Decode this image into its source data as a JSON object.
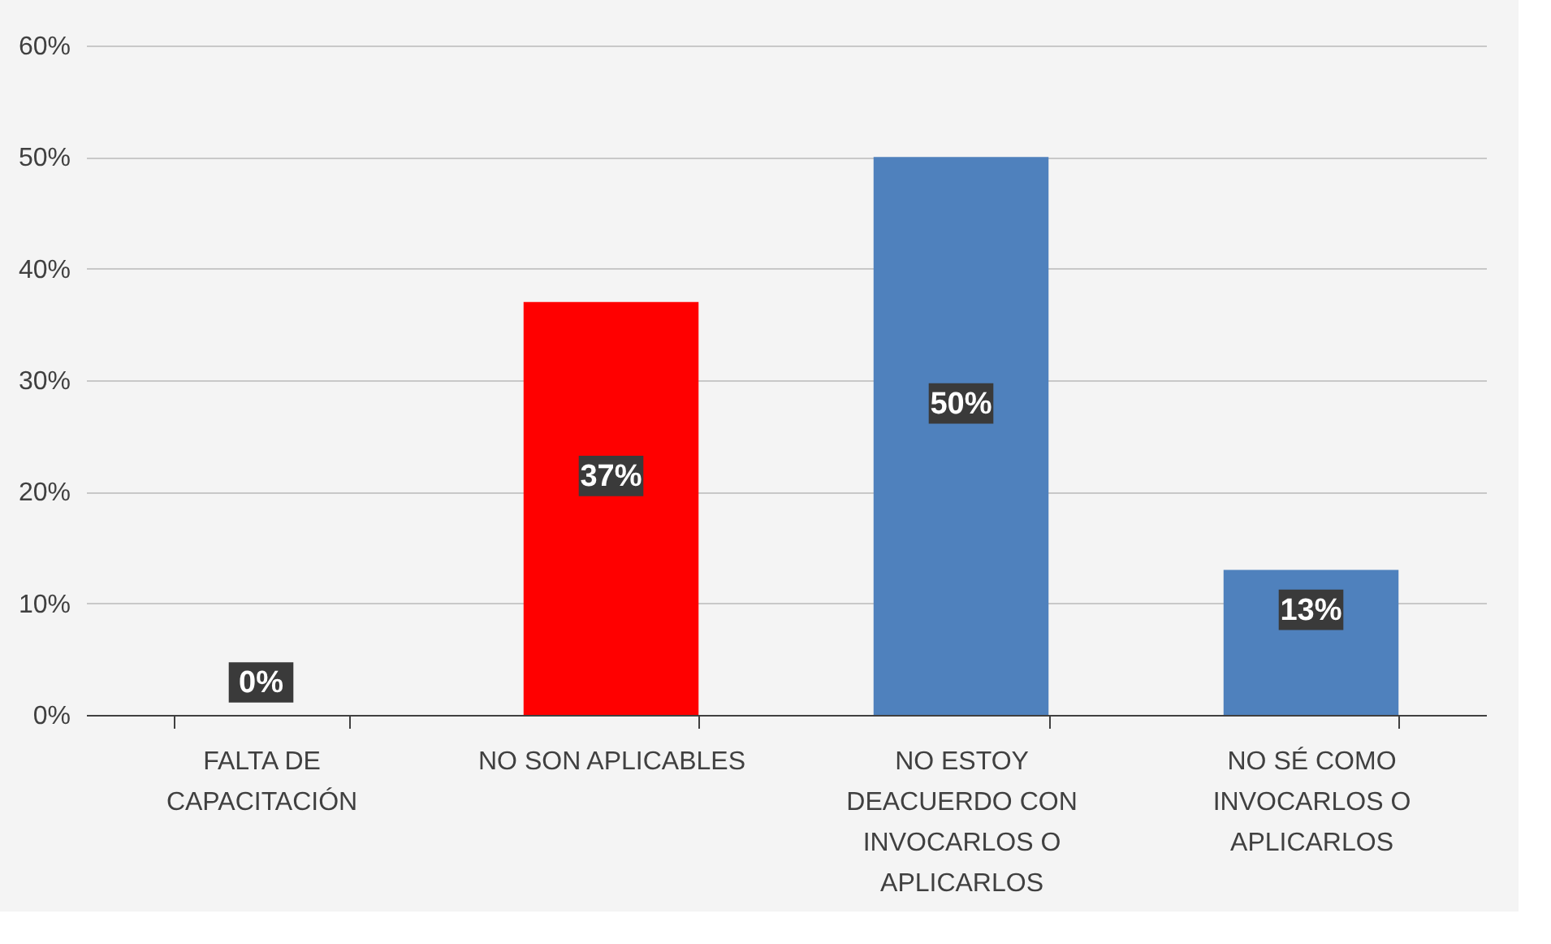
{
  "chart_data": {
    "type": "bar",
    "categories": [
      "FALTA DE CAPACITACIÓN",
      "NO SON APLICABLES",
      "NO ESTOY DEACUERDO CON INVOCARLOS O APLICARLOS",
      "NO SÉ COMO INVOCARLOS O APLICARLOS"
    ],
    "values": [
      0,
      37,
      50,
      13
    ],
    "colors": [
      "#4f81bd",
      "#ff0000",
      "#4f81bd",
      "#4f81bd"
    ],
    "value_labels": [
      "0%",
      "37%",
      "50%",
      "13%"
    ],
    "ylim": [
      0,
      60
    ],
    "yticks": [
      {
        "value": 0,
        "label": "0%"
      },
      {
        "value": 10,
        "label": "10%"
      },
      {
        "value": 20,
        "label": "20%"
      },
      {
        "value": 30,
        "label": "30%"
      },
      {
        "value": 40,
        "label": "40%"
      },
      {
        "value": 50,
        "label": "50%"
      },
      {
        "value": 60,
        "label": "60%"
      }
    ],
    "grid": "y"
  }
}
